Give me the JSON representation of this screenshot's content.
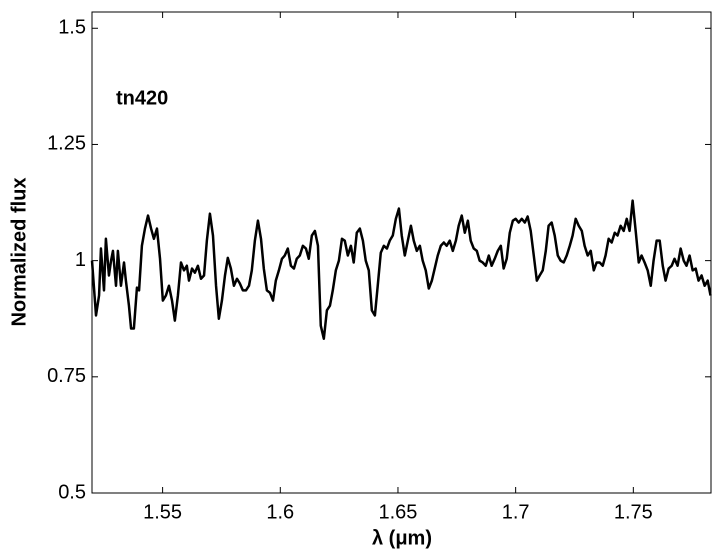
{
  "chart_data": {
    "type": "line",
    "annotation": "tn420",
    "xlabel": "λ (μm)",
    "ylabel": "Normalized flux",
    "xlim": [
      1.52,
      1.783
    ],
    "ylim": [
      0.5,
      1.535
    ],
    "xticks": [
      1.55,
      1.6,
      1.65,
      1.7,
      1.75
    ],
    "yticks": [
      0.5,
      0.75,
      1,
      1.25,
      1.5
    ],
    "color": "#000000",
    "x": [
      1.52,
      1.5217,
      1.523,
      1.5238,
      1.5251,
      1.5259,
      1.5272,
      1.5281,
      1.5289,
      1.5302,
      1.531,
      1.5323,
      1.5336,
      1.5344,
      1.5357,
      1.5366,
      1.5378,
      1.5391,
      1.54,
      1.5412,
      1.5425,
      1.5438,
      1.5451,
      1.5463,
      1.5476,
      1.5489,
      1.5501,
      1.5514,
      1.5527,
      1.554,
      1.5552,
      1.5565,
      1.5578,
      1.5591,
      1.5603,
      1.5612,
      1.5625,
      1.5637,
      1.565,
      1.5663,
      1.5676,
      1.5688,
      1.5701,
      1.5714,
      1.5727,
      1.5739,
      1.5752,
      1.5765,
      1.5777,
      1.579,
      1.5803,
      1.5816,
      1.5828,
      1.5841,
      1.5854,
      1.5867,
      1.5879,
      1.5892,
      1.5905,
      1.5918,
      1.593,
      1.5943,
      1.5956,
      1.5969,
      1.5981,
      1.5994,
      1.6007,
      1.6019,
      1.6032,
      1.6045,
      1.6058,
      1.607,
      1.6083,
      1.6096,
      1.6109,
      1.6121,
      1.6134,
      1.6147,
      1.616,
      1.6172,
      1.6185,
      1.6198,
      1.6211,
      1.6223,
      1.6236,
      1.6249,
      1.6262,
      1.6274,
      1.6287,
      1.63,
      1.6312,
      1.6325,
      1.6338,
      1.6351,
      1.6363,
      1.6376,
      1.6389,
      1.6402,
      1.6414,
      1.6427,
      1.644,
      1.6453,
      1.6465,
      1.6478,
      1.6491,
      1.6504,
      1.6516,
      1.6529,
      1.6542,
      1.6555,
      1.6567,
      1.658,
      1.6593,
      1.6605,
      1.6618,
      1.6631,
      1.6644,
      1.6656,
      1.6669,
      1.6682,
      1.6695,
      1.6707,
      1.672,
      1.6733,
      1.6746,
      1.6758,
      1.6771,
      1.6784,
      1.6797,
      1.6809,
      1.6822,
      1.6835,
      1.6847,
      1.686,
      1.6873,
      1.6886,
      1.6898,
      1.6911,
      1.6924,
      1.6937,
      1.6949,
      1.6962,
      1.6975,
      1.6988,
      1.7,
      1.7013,
      1.7026,
      1.7039,
      1.7051,
      1.7064,
      1.7077,
      1.709,
      1.7102,
      1.7115,
      1.7128,
      1.714,
      1.7153,
      1.7166,
      1.7179,
      1.7191,
      1.7204,
      1.7217,
      1.723,
      1.7242,
      1.7255,
      1.7268,
      1.7281,
      1.7293,
      1.7306,
      1.7319,
      1.7332,
      1.7344,
      1.7357,
      1.737,
      1.7382,
      1.7395,
      1.7408,
      1.7421,
      1.7433,
      1.7446,
      1.7459,
      1.7472,
      1.7484,
      1.7497,
      1.751,
      1.7523,
      1.7535,
      1.7548,
      1.7561,
      1.7574,
      1.7586,
      1.7599,
      1.7612,
      1.7625,
      1.7637,
      1.765,
      1.7663,
      1.7675,
      1.7688,
      1.7701,
      1.7714,
      1.7726,
      1.7739,
      1.7752,
      1.7765,
      1.7777,
      1.779,
      1.7803,
      1.7816,
      1.7828
    ],
    "values": [
      1.0,
      0.882,
      0.925,
      1.026,
      0.936,
      1.047,
      0.968,
      1.0,
      1.021,
      0.946,
      1.021,
      0.946,
      0.996,
      0.957,
      0.903,
      0.854,
      0.854,
      0.942,
      0.936,
      1.032,
      1.069,
      1.097,
      1.069,
      1.047,
      1.069,
      1.004,
      0.914,
      0.925,
      0.946,
      0.914,
      0.871,
      0.925,
      0.996,
      0.979,
      0.989,
      0.957,
      0.983,
      0.974,
      0.989,
      0.961,
      0.968,
      1.043,
      1.101,
      1.054,
      0.946,
      0.875,
      0.914,
      0.968,
      1.006,
      0.983,
      0.946,
      0.961,
      0.951,
      0.936,
      0.936,
      0.946,
      0.979,
      1.043,
      1.086,
      1.047,
      0.983,
      0.936,
      0.931,
      0.914,
      0.957,
      0.979,
      1.004,
      1.011,
      1.026,
      0.989,
      0.983,
      1.004,
      1.011,
      1.032,
      1.026,
      1.004,
      1.054,
      1.064,
      1.032,
      0.86,
      0.832,
      0.893,
      0.903,
      0.936,
      0.979,
      1.0,
      1.047,
      1.043,
      1.011,
      1.032,
      0.996,
      1.06,
      1.069,
      1.043,
      1.0,
      0.979,
      0.893,
      0.882,
      0.946,
      1.017,
      1.032,
      1.026,
      1.043,
      1.054,
      1.09,
      1.112,
      1.054,
      1.011,
      1.043,
      1.075,
      1.043,
      1.021,
      1.032,
      1.0,
      0.979,
      0.94,
      0.957,
      0.983,
      1.011,
      1.032,
      1.039,
      1.032,
      1.043,
      1.021,
      1.043,
      1.075,
      1.097,
      1.06,
      1.086,
      1.043,
      1.026,
      1.021,
      1.0,
      0.996,
      0.989,
      1.011,
      0.989,
      1.004,
      1.021,
      1.032,
      0.983,
      1.004,
      1.06,
      1.086,
      1.09,
      1.082,
      1.09,
      1.082,
      1.095,
      1.064,
      1.011,
      0.957,
      0.968,
      0.979,
      1.021,
      1.075,
      1.082,
      1.054,
      1.011,
      1.0,
      0.996,
      1.011,
      1.032,
      1.054,
      1.09,
      1.075,
      1.064,
      1.032,
      1.011,
      1.021,
      0.979,
      0.996,
      0.996,
      0.989,
      1.011,
      1.047,
      1.039,
      1.06,
      1.054,
      1.075,
      1.064,
      1.09,
      1.064,
      1.129,
      1.064,
      0.996,
      1.011,
      0.996,
      0.979,
      0.946,
      1.0,
      1.043,
      1.043,
      0.989,
      0.957,
      0.983,
      0.989,
      1.004,
      0.989,
      1.026,
      1.0,
      0.989,
      1.011,
      0.979,
      0.983,
      0.957,
      0.968,
      0.946,
      0.957,
      0.925
    ]
  }
}
